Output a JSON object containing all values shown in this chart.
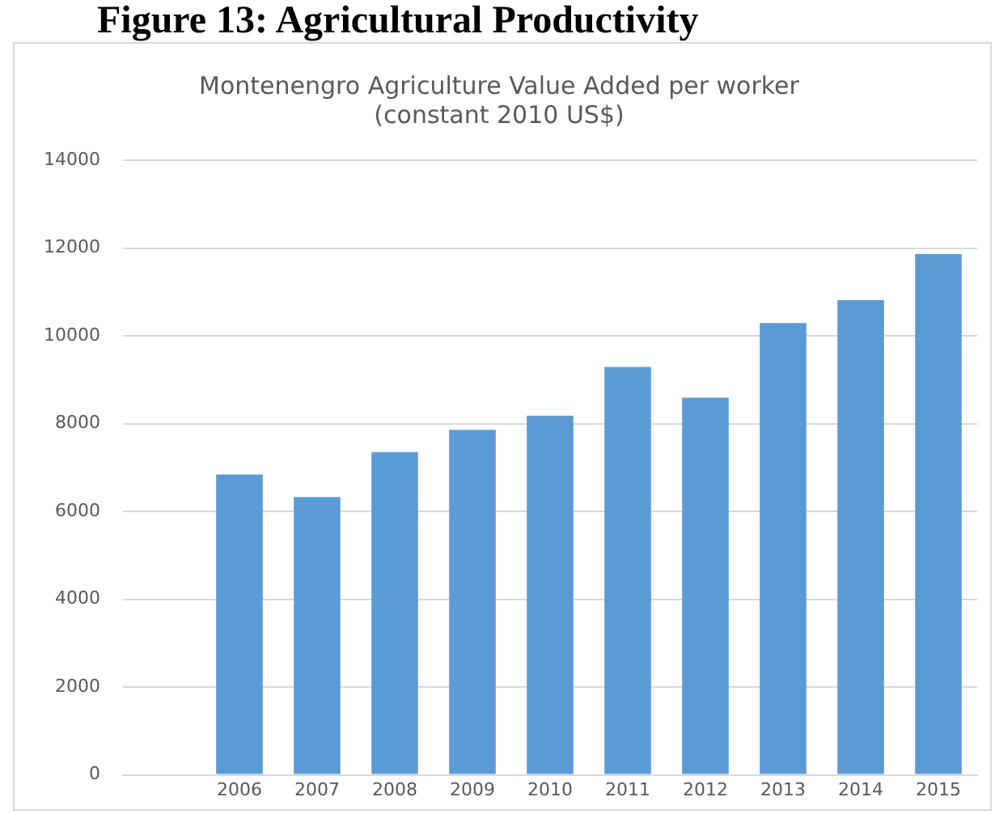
{
  "chart_data": {
    "type": "bar",
    "title": "Figure 13: Agricultural Productivity",
    "subtitle": "Montenengro Agriculture Value Added per worker\n(constant 2010 US$)",
    "categories": [
      null,
      "2006",
      "2007",
      "2008",
      "2009",
      "2010",
      "2011",
      "2012",
      "2013",
      "2014",
      "2015"
    ],
    "values": [
      null,
      6840,
      6330,
      7350,
      7860,
      8180,
      9290,
      8590,
      10290,
      10810,
      11860
    ],
    "color": "#5b9bd5",
    "ylim": [
      0,
      14000
    ],
    "yticks": [
      0,
      2000,
      4000,
      6000,
      8000,
      10000,
      12000,
      14000
    ],
    "grid": "y"
  }
}
